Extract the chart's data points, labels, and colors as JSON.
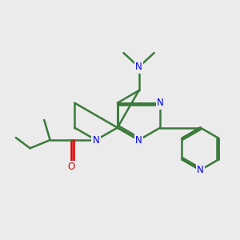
{
  "background_color": "#ebebeb",
  "bond_color": "#3a7a3a",
  "nitrogen_color": "#0000ee",
  "oxygen_color": "#dd0000",
  "bond_width": 1.8,
  "figsize": [
    3.0,
    3.0
  ],
  "dpi": 100,
  "xlim": [
    0,
    10
  ],
  "ylim": [
    0,
    10
  ]
}
